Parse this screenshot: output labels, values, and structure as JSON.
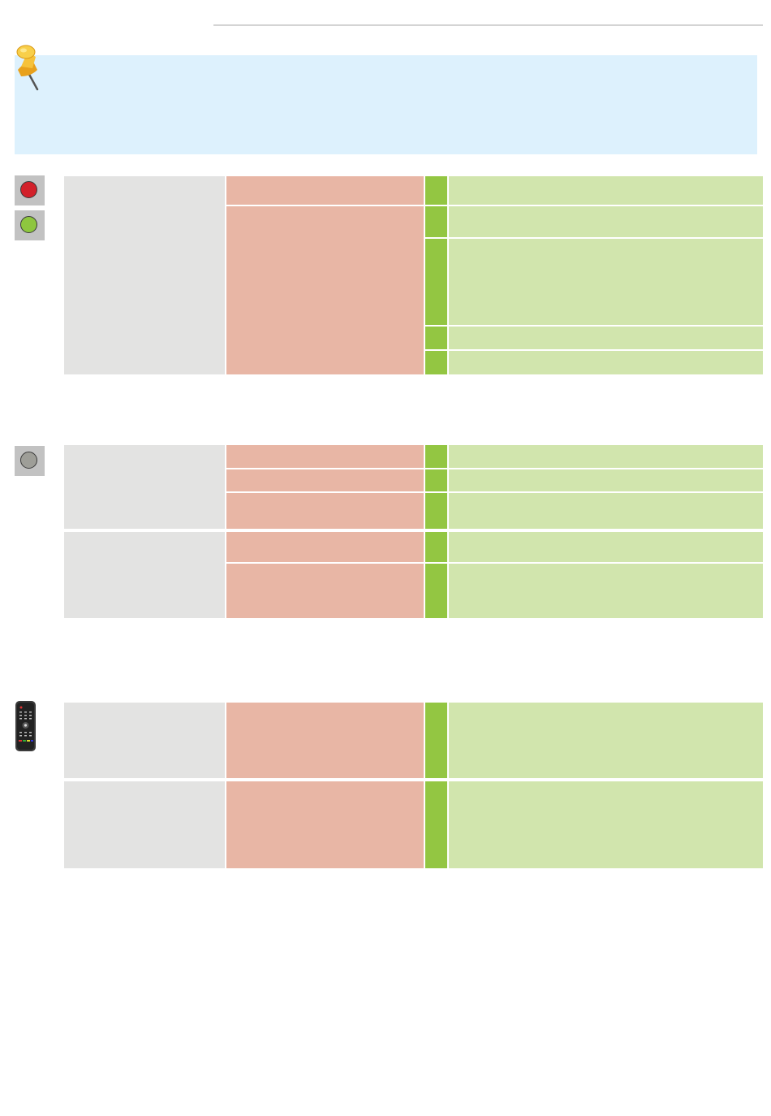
{
  "colors": {
    "header_rule": "#d4d4d4",
    "note_background": "#ddf1fd",
    "led_red": "#d2202a",
    "led_green": "#8ec63f",
    "led_gray": "#9e9e98",
    "cell_gray": "#e3e3e2",
    "cell_salmon": "#e8b6a5",
    "cell_green": "#93c642",
    "cell_light_green": "#d1e5ad"
  },
  "icons": {
    "note": "pushpin-icon",
    "led_red": "red-led-icon",
    "led_green": "green-led-icon",
    "led_gray": "gray-led-icon",
    "remote": "remote-control-icon"
  },
  "note": {
    "text": ""
  },
  "tables": [
    {
      "rows": [
        {
          "col1": "",
          "col2": "",
          "col4": ""
        },
        {
          "col1": "",
          "col2": "",
          "col4": ""
        },
        {
          "col1": "",
          "col2": "",
          "col4": ""
        },
        {
          "col1": "",
          "col2": "",
          "col4": ""
        },
        {
          "col1": "",
          "col2": "",
          "col4": ""
        }
      ]
    },
    {
      "rows": [
        {
          "col1": "",
          "col2": "",
          "col4": ""
        },
        {
          "col1": "",
          "col2": "",
          "col4": ""
        },
        {
          "col1": "",
          "col2": "",
          "col4": ""
        },
        {
          "col1": "",
          "col2": "",
          "col4": ""
        },
        {
          "col1": "",
          "col2": "",
          "col4": ""
        }
      ]
    },
    {
      "rows": [
        {
          "col1": "",
          "col2": "",
          "col4": ""
        },
        {
          "col1": "",
          "col2": "",
          "col4": ""
        }
      ]
    }
  ]
}
